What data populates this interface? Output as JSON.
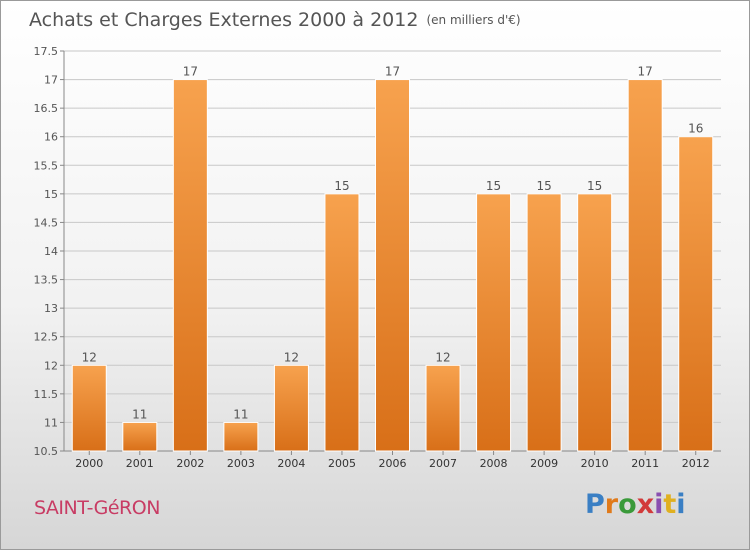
{
  "header": {
    "title": "Achats et Charges Externes 2000 à 2012",
    "subtitle": "(en milliers d'€)"
  },
  "footer": {
    "place": "SAINT-GéRON",
    "brand": "Proxiti"
  },
  "colors": {
    "bar_top": "#f7a24e",
    "bar_bottom": "#d86f18",
    "grid": "#c8c8c8",
    "text": "#555555",
    "place": "#c83c64",
    "brand_letters": [
      "#3a7fc4",
      "#e07a1a",
      "#3a9a3a",
      "#d23a3a",
      "#8a4fb0",
      "#e0b020",
      "#3a7fc4"
    ]
  },
  "chart_data": {
    "type": "bar",
    "title": "Achats et Charges Externes 2000 à 2012",
    "subtitle": "(en milliers d'€)",
    "categories": [
      "2000",
      "2001",
      "2002",
      "2003",
      "2004",
      "2005",
      "2006",
      "2007",
      "2008",
      "2009",
      "2010",
      "2011",
      "2012"
    ],
    "values": [
      12,
      11,
      17,
      11,
      12,
      15,
      17,
      12,
      15,
      15,
      15,
      17,
      16
    ],
    "ylim": [
      10.5,
      17.5
    ],
    "yticks": [
      "10.5",
      "11",
      "11.5",
      "12",
      "12.5",
      "13",
      "13.5",
      "14",
      "14.5",
      "15",
      "15.5",
      "16",
      "16.5",
      "17",
      "17.5"
    ],
    "grid": true,
    "legend": "none"
  }
}
